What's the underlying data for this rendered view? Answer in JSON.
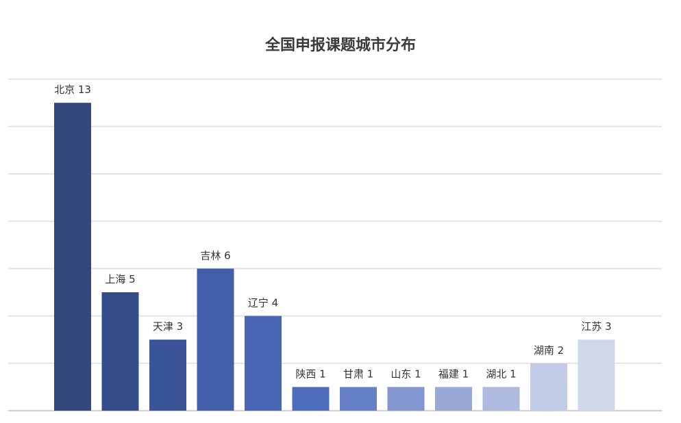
{
  "chart_data": {
    "type": "bar",
    "title": "全国申报课题城市分布",
    "categories": [
      "北京",
      "上海",
      "天津",
      "吉林",
      "辽宁",
      "陕西",
      "甘肃",
      "山东",
      "福建",
      "湖北",
      "湖南",
      "江苏"
    ],
    "values": [
      13,
      5,
      3,
      6,
      4,
      1,
      1,
      1,
      1,
      1,
      2,
      3
    ],
    "data_labels": [
      "北京 13",
      "上海 5",
      "天津 3",
      "吉林 6",
      "辽宁 4",
      "陕西 1",
      "甘肃 1",
      "山东 1",
      "福建 1",
      "湖北 1",
      "湖南 2",
      "江苏 3"
    ],
    "colors": [
      "#31477d",
      "#344c89",
      "#3a5498",
      "#415ea9",
      "#4866b4",
      "#4f6dbd",
      "#6680c7",
      "#8396d0",
      "#9aa8d8",
      "#aebadf",
      "#c2cbe6",
      "#d2d8ec"
    ],
    "ylim": [
      0,
      14
    ],
    "grid": true,
    "legend": "none",
    "xlabel": "",
    "ylabel": ""
  }
}
